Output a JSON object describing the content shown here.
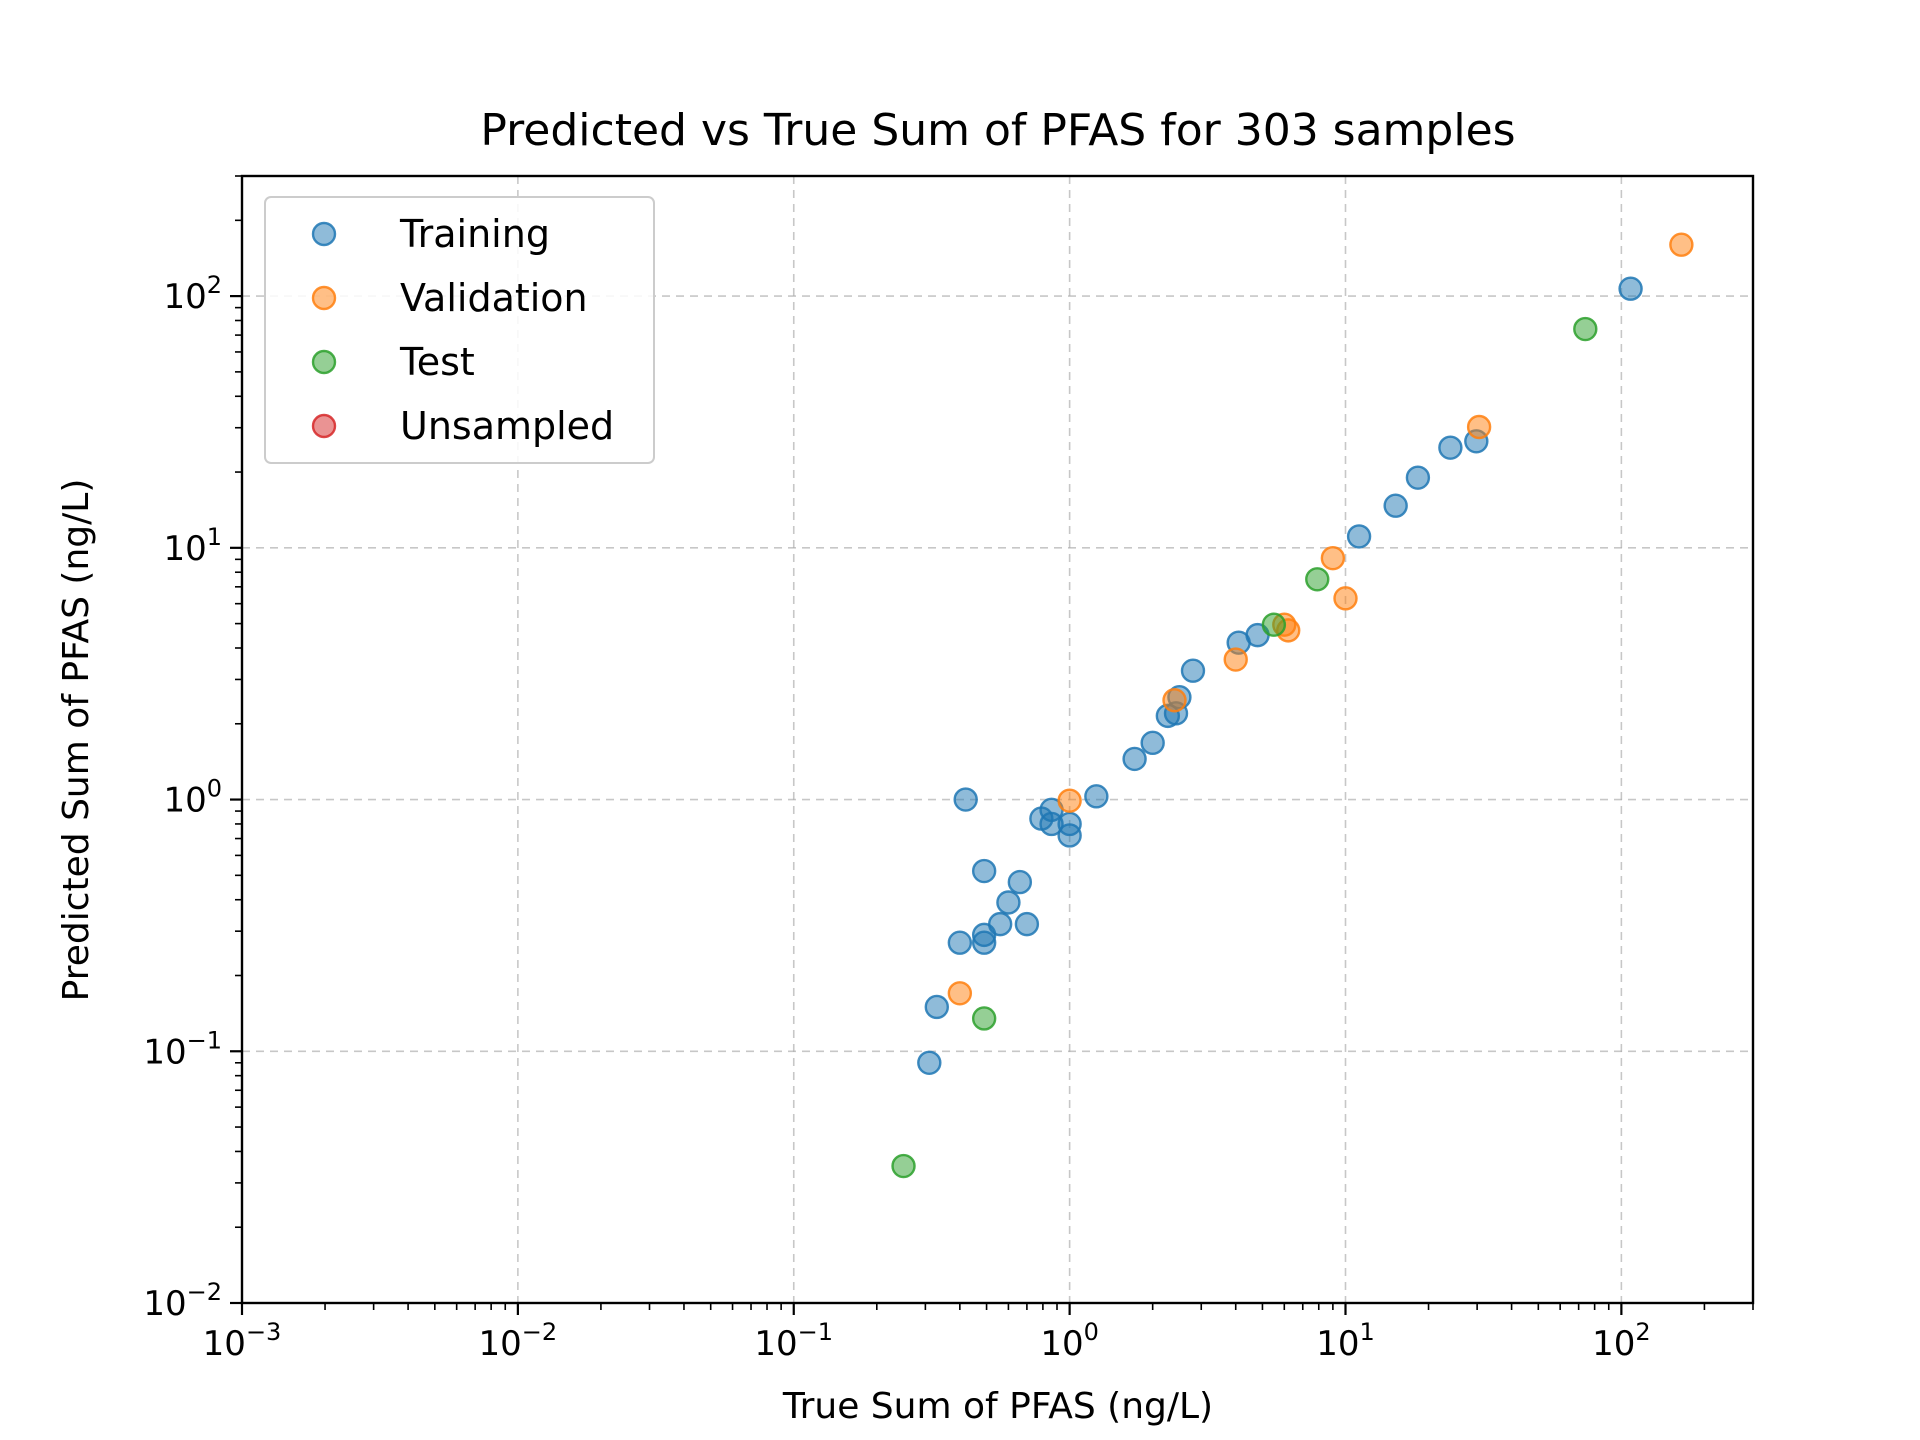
{
  "chart_data": {
    "type": "scatter",
    "title": "Predicted vs True Sum of PFAS for 303 samples",
    "xlabel": "True Sum of PFAS (ng/L)",
    "ylabel": "Predicted Sum of PFAS (ng/L)",
    "xscale": "log",
    "yscale": "log",
    "xlim": [
      0.001,
      300
    ],
    "ylim": [
      0.01,
      300
    ],
    "x_ticks": [
      {
        "value": 0.001,
        "base": "10",
        "exp": "−3"
      },
      {
        "value": 0.01,
        "base": "10",
        "exp": "−2"
      },
      {
        "value": 0.1,
        "base": "10",
        "exp": "−1"
      },
      {
        "value": 1,
        "base": "10",
        "exp": "0"
      },
      {
        "value": 10,
        "base": "10",
        "exp": "1"
      },
      {
        "value": 100,
        "base": "10",
        "exp": "2"
      }
    ],
    "y_ticks": [
      {
        "value": 0.01,
        "base": "10",
        "exp": "−2"
      },
      {
        "value": 0.1,
        "base": "10",
        "exp": "−1"
      },
      {
        "value": 1,
        "base": "10",
        "exp": "0"
      },
      {
        "value": 10,
        "base": "10",
        "exp": "1"
      },
      {
        "value": 100,
        "base": "10",
        "exp": "2"
      }
    ],
    "grid": true,
    "legend_position": "top-left",
    "series": [
      {
        "name": "Training",
        "color": "#1f77b4",
        "points": [
          {
            "x": 0.31,
            "y": 0.09
          },
          {
            "x": 0.33,
            "y": 0.15
          },
          {
            "x": 0.4,
            "y": 0.27
          },
          {
            "x": 0.42,
            "y": 1.0
          },
          {
            "x": 0.49,
            "y": 0.27
          },
          {
            "x": 0.49,
            "y": 0.29
          },
          {
            "x": 0.49,
            "y": 0.52
          },
          {
            "x": 0.56,
            "y": 0.32
          },
          {
            "x": 0.6,
            "y": 0.39
          },
          {
            "x": 0.66,
            "y": 0.47
          },
          {
            "x": 0.7,
            "y": 0.32
          },
          {
            "x": 0.79,
            "y": 0.84
          },
          {
            "x": 0.86,
            "y": 0.91
          },
          {
            "x": 0.86,
            "y": 0.8
          },
          {
            "x": 1.0,
            "y": 0.8
          },
          {
            "x": 1.0,
            "y": 0.72
          },
          {
            "x": 1.25,
            "y": 1.03
          },
          {
            "x": 1.72,
            "y": 1.45
          },
          {
            "x": 2.0,
            "y": 1.68
          },
          {
            "x": 2.27,
            "y": 2.15
          },
          {
            "x": 2.43,
            "y": 2.2
          },
          {
            "x": 2.5,
            "y": 2.55
          },
          {
            "x": 2.8,
            "y": 3.25
          },
          {
            "x": 4.1,
            "y": 4.2
          },
          {
            "x": 4.8,
            "y": 4.5
          },
          {
            "x": 11.2,
            "y": 11.1
          },
          {
            "x": 15.2,
            "y": 14.7
          },
          {
            "x": 18.3,
            "y": 19.0
          },
          {
            "x": 24.0,
            "y": 25.0
          },
          {
            "x": 29.8,
            "y": 26.5
          },
          {
            "x": 108,
            "y": 107
          }
        ]
      },
      {
        "name": "Validation",
        "color": "#ff7f0e",
        "points": [
          {
            "x": 0.4,
            "y": 0.17
          },
          {
            "x": 1.0,
            "y": 0.99
          },
          {
            "x": 2.4,
            "y": 2.48
          },
          {
            "x": 4.0,
            "y": 3.6
          },
          {
            "x": 6.0,
            "y": 4.95
          },
          {
            "x": 6.2,
            "y": 4.7
          },
          {
            "x": 9.0,
            "y": 9.1
          },
          {
            "x": 10.0,
            "y": 6.3
          },
          {
            "x": 30.5,
            "y": 30.2
          },
          {
            "x": 165,
            "y": 160
          }
        ]
      },
      {
        "name": "Test",
        "color": "#2ca02c",
        "points": [
          {
            "x": 0.25,
            "y": 0.035
          },
          {
            "x": 0.49,
            "y": 0.135
          },
          {
            "x": 5.5,
            "y": 4.95
          },
          {
            "x": 7.9,
            "y": 7.5
          },
          {
            "x": 74,
            "y": 74
          }
        ]
      },
      {
        "name": "Unsampled",
        "color": "#d62728",
        "points": []
      }
    ]
  }
}
